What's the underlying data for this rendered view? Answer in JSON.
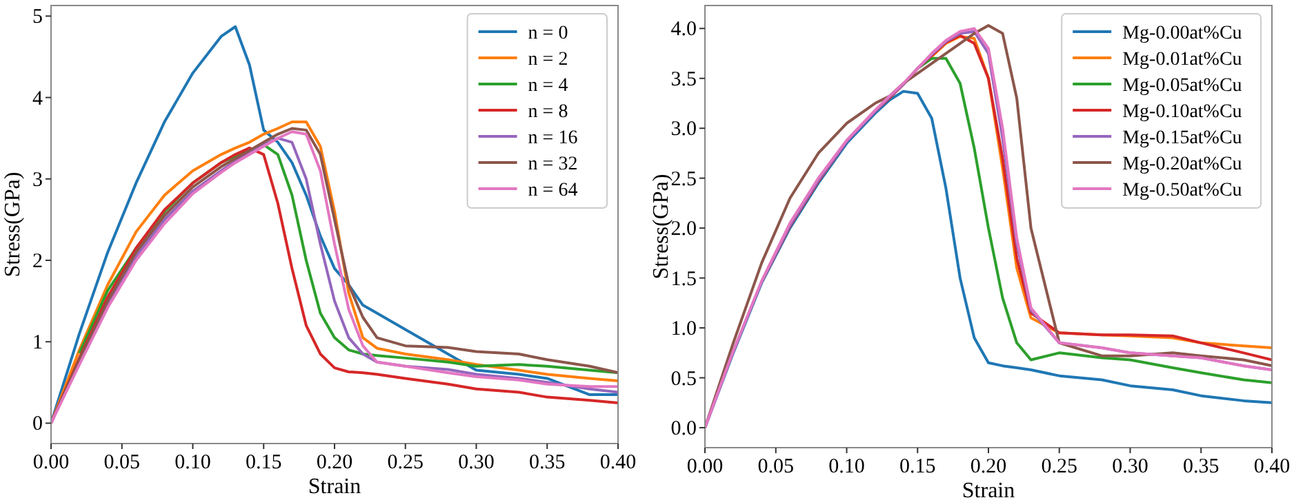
{
  "chart_data": [
    {
      "type": "line",
      "xlabel": "Strain",
      "ylabel": "Stress(GPa)",
      "xlim": [
        0,
        0.4
      ],
      "ylim": [
        -0.25,
        5.13
      ],
      "xticks": [
        {
          "value": 0,
          "label": "0.00"
        },
        {
          "value": 0.05,
          "label": "0.05"
        },
        {
          "value": 0.1,
          "label": "0.10"
        },
        {
          "value": 0.15,
          "label": "0.15"
        },
        {
          "value": 0.2,
          "label": "0.20"
        },
        {
          "value": 0.25,
          "label": "0.25"
        },
        {
          "value": 0.3,
          "label": "0.30"
        },
        {
          "value": 0.35,
          "label": "0.35"
        },
        {
          "value": 0.4,
          "label": "0.40"
        }
      ],
      "yticks": [
        0,
        1,
        2,
        3,
        4,
        5
      ],
      "legend": "top right",
      "grid": false,
      "marker": "none",
      "line_style": "solid",
      "x": [
        0,
        0.02,
        0.04,
        0.06,
        0.08,
        0.1,
        0.12,
        0.13,
        0.14,
        0.15,
        0.16,
        0.17,
        0.18,
        0.19,
        0.2,
        0.21,
        0.22,
        0.23,
        0.25,
        0.28,
        0.3,
        0.33,
        0.35,
        0.38,
        0.4
      ],
      "series": [
        {
          "name": "n = 0",
          "color": "#1f77b4",
          "values": [
            0,
            1.1,
            2.1,
            2.95,
            3.7,
            4.3,
            4.75,
            4.87,
            4.4,
            3.6,
            3.45,
            3.2,
            2.8,
            2.3,
            1.9,
            1.7,
            1.45,
            1.35,
            1.15,
            0.85,
            0.65,
            0.6,
            0.55,
            0.35,
            0.35
          ]
        },
        {
          "name": "n = 2",
          "color": "#ff7f0e",
          "values": [
            0,
            0.9,
            1.7,
            2.35,
            2.8,
            3.1,
            3.3,
            3.38,
            3.45,
            3.55,
            3.62,
            3.7,
            3.7,
            3.4,
            2.6,
            1.6,
            1.05,
            0.92,
            0.85,
            0.78,
            0.72,
            0.65,
            0.6,
            0.55,
            0.52
          ]
        },
        {
          "name": "n = 4",
          "color": "#2ca02c",
          "values": [
            null,
            0.86,
            1.63,
            2.15,
            2.6,
            2.95,
            3.2,
            3.28,
            3.35,
            3.42,
            3.3,
            2.8,
            2,
            1.35,
            1.05,
            0.9,
            0.85,
            0.83,
            0.8,
            0.75,
            0.7,
            0.72,
            0.7,
            0.65,
            0.62
          ]
        },
        {
          "name": "n = 8",
          "color": "#d62728",
          "values": [
            0,
            0.8,
            1.55,
            2.15,
            2.62,
            2.95,
            3.2,
            3.3,
            3.38,
            3.3,
            2.7,
            1.9,
            1.2,
            0.85,
            0.68,
            0.63,
            0.62,
            0.6,
            0.55,
            0.48,
            0.42,
            0.38,
            0.32,
            0.28,
            0.25
          ]
        },
        {
          "name": "n = 16",
          "color": "#9467bd",
          "values": [
            0,
            0.75,
            1.45,
            2.05,
            2.5,
            2.85,
            3.1,
            3.22,
            3.32,
            3.42,
            3.5,
            3.45,
            3,
            2.2,
            1.5,
            1.05,
            0.85,
            0.75,
            0.7,
            0.66,
            0.6,
            0.55,
            0.5,
            0.42,
            0.38
          ]
        },
        {
          "name": "n = 32",
          "color": "#8c564b",
          "values": [
            0,
            0.78,
            1.5,
            2.1,
            2.55,
            2.9,
            3.15,
            3.25,
            3.35,
            3.45,
            3.55,
            3.62,
            3.6,
            3.3,
            2.5,
            1.7,
            1.3,
            1.05,
            0.95,
            0.93,
            0.88,
            0.85,
            0.78,
            0.7,
            0.62
          ]
        },
        {
          "name": "n = 64",
          "color": "#e377c2",
          "values": [
            0,
            0.72,
            1.42,
            2,
            2.45,
            2.82,
            3.08,
            3.2,
            3.3,
            3.4,
            3.5,
            3.58,
            3.55,
            3.1,
            2.2,
            1.4,
            0.95,
            0.75,
            0.7,
            0.62,
            0.57,
            0.53,
            0.48,
            0.45,
            0.45
          ]
        }
      ]
    },
    {
      "type": "line",
      "xlabel": "Strain",
      "ylabel": "Stress(GPa)",
      "xlim": [
        0,
        0.4
      ],
      "ylim": [
        -0.2,
        4.23
      ],
      "xticks": [
        {
          "value": 0,
          "label": "0.00"
        },
        {
          "value": 0.05,
          "label": "0.05"
        },
        {
          "value": 0.1,
          "label": "0.10"
        },
        {
          "value": 0.15,
          "label": "0.15"
        },
        {
          "value": 0.2,
          "label": "0.20"
        },
        {
          "value": 0.25,
          "label": "0.25"
        },
        {
          "value": 0.3,
          "label": "0.30"
        },
        {
          "value": 0.35,
          "label": "0.35"
        },
        {
          "value": 0.4,
          "label": "0.40"
        }
      ],
      "yticks": [
        {
          "value": 0,
          "label": "0.0"
        },
        {
          "value": 0.5,
          "label": "0.5"
        },
        {
          "value": 1,
          "label": "1.0"
        },
        {
          "value": 1.5,
          "label": "1.5"
        },
        {
          "value": 2,
          "label": "2.0"
        },
        {
          "value": 2.5,
          "label": "2.5"
        },
        {
          "value": 3,
          "label": "3.0"
        },
        {
          "value": 3.5,
          "label": "3.5"
        },
        {
          "value": 4,
          "label": "4.0"
        }
      ],
      "legend": "top right",
      "grid": false,
      "marker": "none",
      "line_style": "solid",
      "x": [
        0,
        0.02,
        0.04,
        0.06,
        0.08,
        0.1,
        0.12,
        0.13,
        0.14,
        0.15,
        0.16,
        0.17,
        0.18,
        0.19,
        0.2,
        0.21,
        0.22,
        0.23,
        0.25,
        0.28,
        0.3,
        0.33,
        0.35,
        0.38,
        0.4
      ],
      "series": [
        {
          "name": "Mg-0.00at%Cu",
          "color": "#1f77b4",
          "values": [
            0,
            0.75,
            1.45,
            2,
            2.45,
            2.85,
            3.15,
            3.28,
            3.37,
            3.35,
            3.1,
            2.4,
            1.5,
            0.9,
            0.65,
            0.62,
            0.6,
            0.58,
            0.52,
            0.48,
            0.42,
            0.38,
            0.32,
            0.27,
            0.25
          ]
        },
        {
          "name": "Mg-0.01at%Cu",
          "color": "#ff7f0e",
          "values": [
            null,
            null,
            null,
            null,
            null,
            null,
            null,
            null,
            null,
            3.6,
            3.72,
            3.85,
            3.92,
            3.9,
            3.5,
            2.6,
            1.6,
            1.1,
            0.95,
            0.93,
            0.92,
            0.9,
            0.85,
            0.82,
            0.8
          ]
        },
        {
          "name": "Mg-0.05at%Cu",
          "color": "#2ca02c",
          "values": [
            null,
            null,
            null,
            null,
            null,
            null,
            null,
            null,
            3.44,
            3.6,
            3.7,
            3.7,
            3.45,
            2.8,
            2,
            1.3,
            0.85,
            0.68,
            0.75,
            0.7,
            0.68,
            0.6,
            0.55,
            0.48,
            0.45
          ]
        },
        {
          "name": "Mg-0.10at%Cu",
          "color": "#d62728",
          "values": [
            null,
            null,
            1.46,
            2.02,
            2.47,
            2.87,
            3.17,
            3.3,
            3.44,
            3.6,
            3.73,
            3.86,
            3.93,
            3.85,
            3.5,
            2.7,
            1.7,
            1.15,
            0.95,
            0.93,
            0.93,
            0.92,
            0.85,
            0.75,
            0.68
          ]
        },
        {
          "name": "Mg-0.15at%Cu",
          "color": "#9467bd",
          "values": [
            0,
            0.76,
            1.46,
            2.03,
            2.48,
            2.87,
            3.17,
            3.31,
            3.44,
            3.6,
            3.74,
            3.87,
            3.95,
            3.97,
            3.75,
            2.9,
            1.85,
            1.18,
            0.85,
            0.8,
            0.75,
            0.72,
            0.7,
            0.62,
            0.58
          ]
        },
        {
          "name": "Mg-0.20at%Cu",
          "color": "#8c564b",
          "values": [
            0,
            0.85,
            1.65,
            2.3,
            2.75,
            3.05,
            3.25,
            3.32,
            3.45,
            3.55,
            3.65,
            3.75,
            3.85,
            3.95,
            4.03,
            3.95,
            3.3,
            2,
            0.85,
            0.72,
            0.72,
            0.75,
            0.72,
            0.68,
            0.62
          ]
        },
        {
          "name": "Mg-0.50at%Cu",
          "color": "#e377c2",
          "values": [
            0,
            0.77,
            1.47,
            2.05,
            2.5,
            2.88,
            3.18,
            3.32,
            3.45,
            3.6,
            3.75,
            3.88,
            3.97,
            4,
            3.8,
            3,
            1.9,
            1.2,
            0.85,
            0.8,
            0.75,
            0.72,
            0.7,
            0.62,
            0.58
          ]
        }
      ]
    }
  ]
}
